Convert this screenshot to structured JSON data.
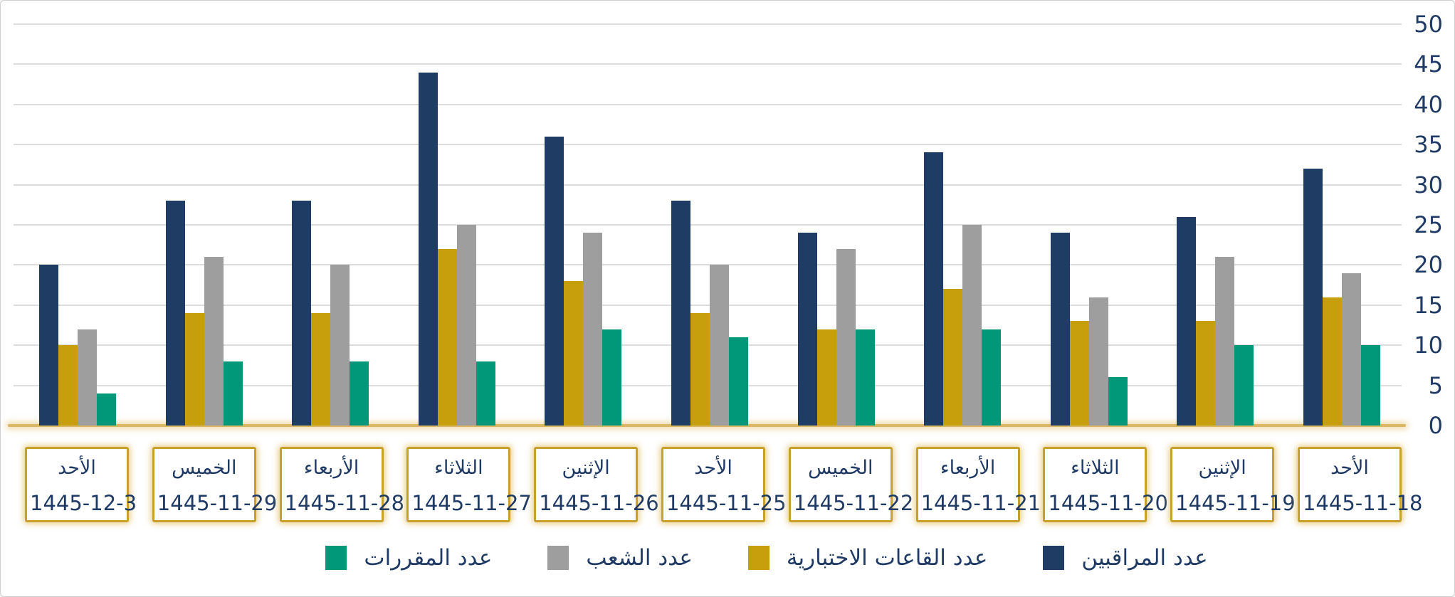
{
  "accent_colors": {
    "navy": "#1e3c64",
    "gold": "#c79f0d",
    "gray": "#9e9e9e",
    "green": "#009878",
    "grid": "#dcdcdc",
    "axis_text": "#1f3a64",
    "zero_line_gold": "#d9b765",
    "box_border_gold": "#c7a12c"
  },
  "y_axis": {
    "ticks": [
      0,
      5,
      10,
      15,
      20,
      25,
      30,
      35,
      40,
      45,
      50
    ]
  },
  "legend": [
    {
      "label": "عدد المراقبين",
      "color": "#1e3c64",
      "icon": "navy-square-icon"
    },
    {
      "label": "عدد القاعات الاختبارية",
      "color": "#c79f0d",
      "icon": "gold-square-icon"
    },
    {
      "label": "عدد الشعب",
      "color": "#9e9e9e",
      "icon": "gray-square-icon"
    },
    {
      "label": "عدد المقررات",
      "color": "#009878",
      "icon": "green-square-icon"
    }
  ],
  "chart_data": {
    "type": "bar",
    "direction": "rtl",
    "title": "",
    "xlabel": "",
    "ylabel": "",
    "ylim": [
      0,
      50
    ],
    "y_tick_step": 5,
    "grid": true,
    "y_axis_position": "right",
    "legend_position": "bottom",
    "categories": [
      {
        "day": "الأحد",
        "date": "1445-12-3"
      },
      {
        "day": "الخميس",
        "date": "1445-11-29"
      },
      {
        "day": "الأربعاء",
        "date": "1445-11-28"
      },
      {
        "day": "الثلاثاء",
        "date": "1445-11-27"
      },
      {
        "day": "الإثنين",
        "date": "1445-11-26"
      },
      {
        "day": "الأحد",
        "date": "1445-11-25"
      },
      {
        "day": "الخميس",
        "date": "1445-11-22"
      },
      {
        "day": "الأربعاء",
        "date": "1445-11-21"
      },
      {
        "day": "الثلاثاء",
        "date": "1445-11-20"
      },
      {
        "day": "الإثنين",
        "date": "1445-11-19"
      },
      {
        "day": "الأحد",
        "date": "1445-11-18"
      }
    ],
    "series": [
      {
        "name": "عدد المراقبين",
        "color": "#1e3c64",
        "values": [
          20,
          28,
          28,
          44,
          36,
          28,
          24,
          34,
          24,
          26,
          32
        ]
      },
      {
        "name": "عدد القاعات الاختبارية",
        "color": "#c79f0d",
        "values": [
          10,
          14,
          14,
          22,
          18,
          14,
          12,
          17,
          13,
          13,
          16
        ]
      },
      {
        "name": "عدد الشعب",
        "color": "#9e9e9e",
        "values": [
          12,
          21,
          20,
          25,
          24,
          20,
          22,
          25,
          16,
          21,
          19
        ]
      },
      {
        "name": "عدد المقررات",
        "color": "#009878",
        "values": [
          4,
          8,
          8,
          8,
          12,
          11,
          12,
          12,
          6,
          10,
          10
        ]
      }
    ],
    "bar_order_within_group_ltr": [
      "عدد المراقبين",
      "عدد القاعات الاختبارية",
      "عدد الشعب",
      "عدد المقررات"
    ]
  }
}
